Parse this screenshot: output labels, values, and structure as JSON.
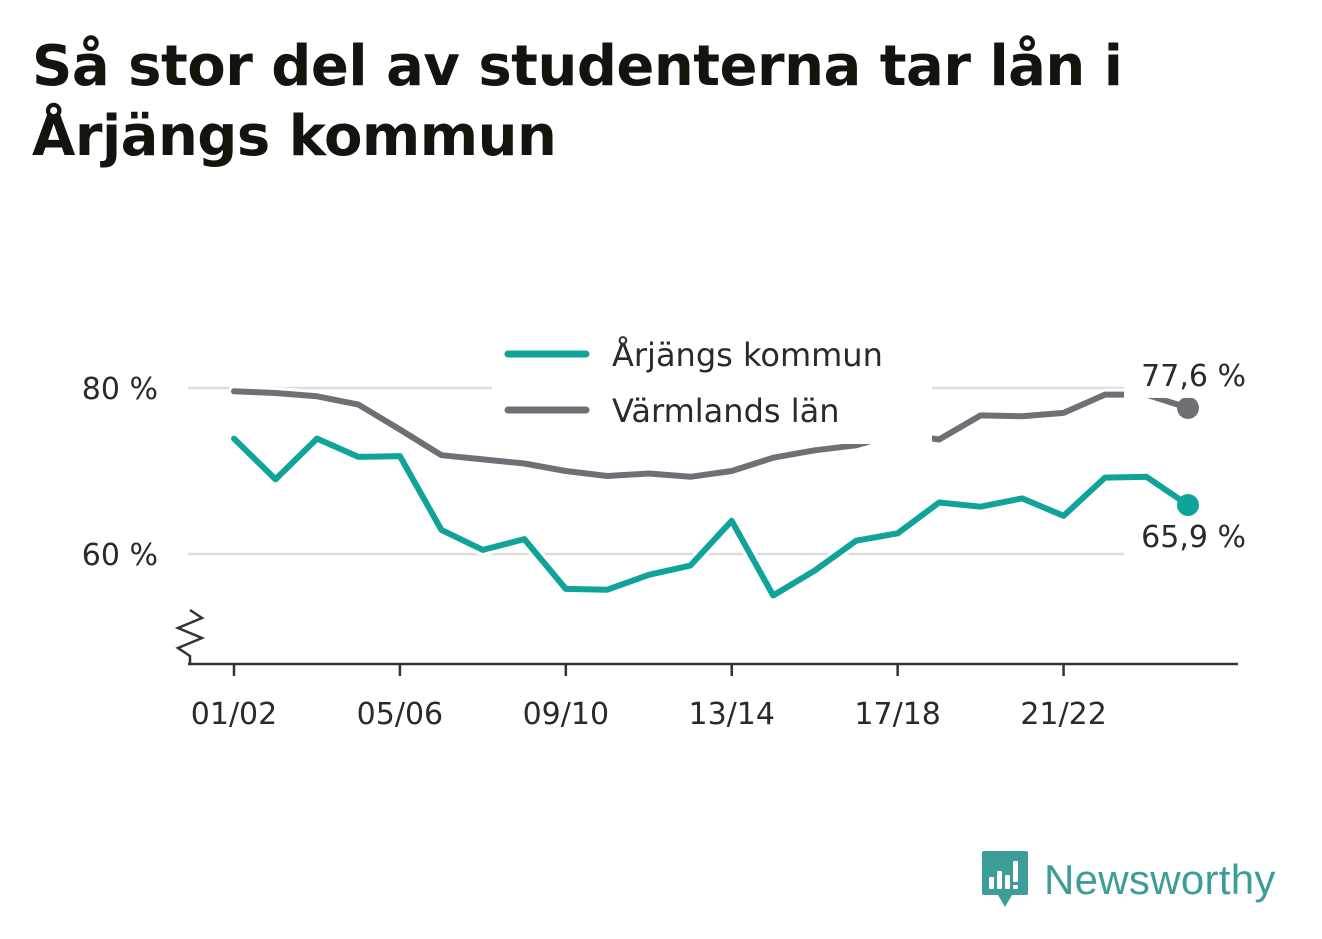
{
  "title": "Så stor del av studenterna tar lån i Årjängs kommun",
  "brand": {
    "name": "Newsworthy",
    "color": "#3d9d98"
  },
  "colors": {
    "primary": "#0fa39a",
    "secondary": "#6f6f76",
    "grid": "#dcdcdc",
    "axis": "#333333"
  },
  "chart_data": {
    "type": "line",
    "categories": [
      "01/02",
      "02/03",
      "03/04",
      "04/05",
      "05/06",
      "06/07",
      "07/08",
      "08/09",
      "09/10",
      "10/11",
      "11/12",
      "12/13",
      "13/14",
      "14/15",
      "15/16",
      "16/17",
      "17/18",
      "18/19",
      "19/20",
      "20/21",
      "21/22",
      "22/23",
      "23/24",
      "24/25"
    ],
    "xtick_labels": [
      "01/02",
      "05/06",
      "09/10",
      "13/14",
      "17/18",
      "21/22"
    ],
    "yticks": [
      60,
      80
    ],
    "ytick_labels": [
      "60 %",
      "80 %"
    ],
    "ylim": [
      46.5,
      87.5
    ],
    "axis_break": true,
    "grid": true,
    "legend_position": "top-center",
    "series": [
      {
        "name": "Årjängs kommun",
        "color": "#0fa39a",
        "values": [
          73.9,
          69.0,
          73.9,
          71.7,
          71.8,
          62.9,
          60.5,
          61.8,
          55.8,
          55.7,
          57.5,
          58.6,
          64.0,
          55.0,
          58.0,
          61.6,
          62.5,
          66.2,
          65.7,
          66.7,
          64.6,
          69.2,
          69.3,
          65.9
        ],
        "end_label": "65,9 %"
      },
      {
        "name": "Värmlands län",
        "color": "#6f6f76",
        "values": [
          79.6,
          79.4,
          79.0,
          78.0,
          75.0,
          71.9,
          71.4,
          70.9,
          70.0,
          69.4,
          69.7,
          69.3,
          70.0,
          71.6,
          72.5,
          73.1,
          74.5,
          73.8,
          76.7,
          76.6,
          77.0,
          79.2,
          79.2,
          77.6
        ],
        "end_label": "77,6 %"
      }
    ]
  }
}
